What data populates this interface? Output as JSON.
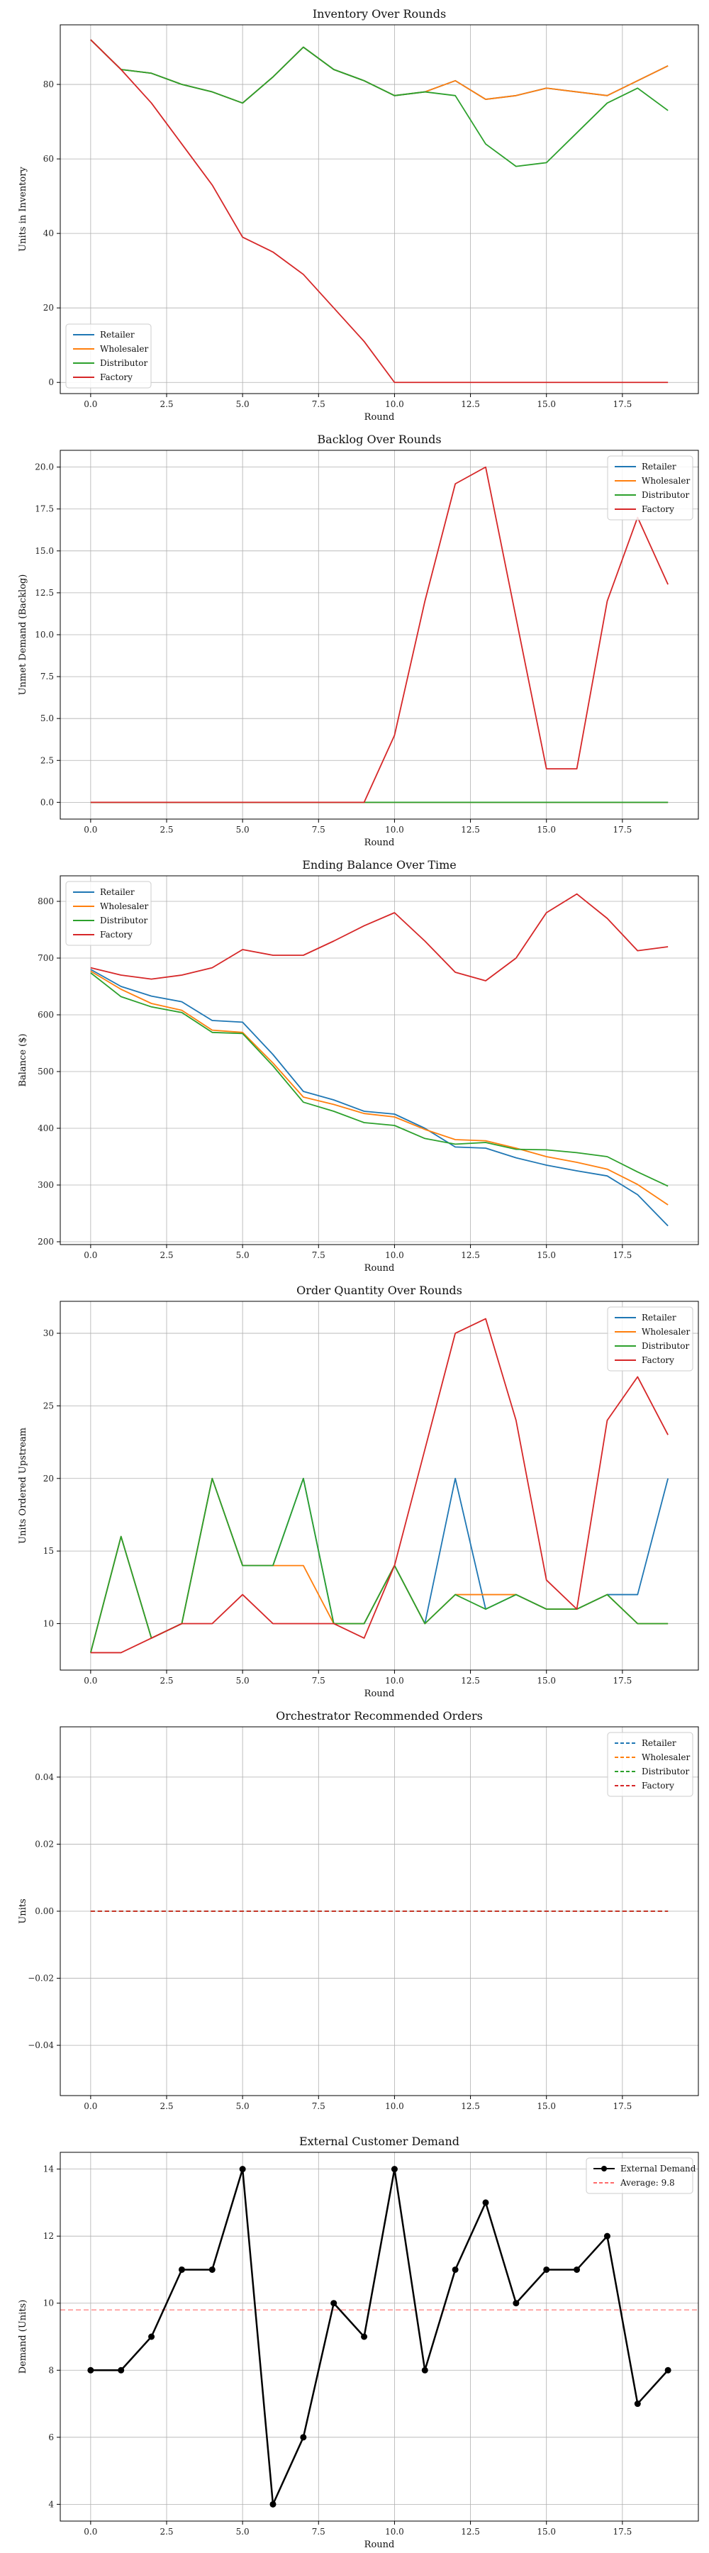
{
  "chart_data": [
    {
      "type": "line",
      "title": "Inventory Over Rounds",
      "xlabel": "Round",
      "ylabel": "Units in Inventory",
      "xlim": [
        -1,
        20
      ],
      "ylim": [
        -3,
        96
      ],
      "xticks": [
        0.0,
        2.5,
        5.0,
        7.5,
        10.0,
        12.5,
        15.0,
        17.5
      ],
      "xtick_labels": [
        "0.0",
        "2.5",
        "5.0",
        "7.5",
        "10.0",
        "12.5",
        "15.0",
        "17.5"
      ],
      "yticks": [
        0,
        20,
        40,
        60,
        80
      ],
      "ytick_labels": [
        "0",
        "20",
        "40",
        "60",
        "80"
      ],
      "legend_loc": "lower-left",
      "grid": true,
      "x": [
        0,
        1,
        2,
        3,
        4,
        5,
        6,
        7,
        8,
        9,
        10,
        11,
        12,
        13,
        14,
        15,
        16,
        17,
        18,
        19
      ],
      "series": [
        {
          "name": "Retailer",
          "color": "#1f77b4",
          "values": [
            92,
            84,
            83,
            80,
            78,
            75,
            82,
            90,
            84,
            81,
            77,
            78,
            81,
            76,
            77,
            79,
            78,
            77,
            81,
            85
          ]
        },
        {
          "name": "Wholesaler",
          "color": "#ff7f0e",
          "values": [
            92,
            84,
            83,
            80,
            78,
            75,
            82,
            90,
            84,
            81,
            77,
            78,
            81,
            76,
            77,
            79,
            78,
            77,
            81,
            85
          ]
        },
        {
          "name": "Distributor",
          "color": "#2ca02c",
          "values": [
            92,
            84,
            83,
            80,
            78,
            75,
            82,
            90,
            84,
            81,
            77,
            78,
            77,
            64,
            58,
            59,
            67,
            75,
            79,
            73
          ]
        },
        {
          "name": "Factory",
          "color": "#d62728",
          "values": [
            92,
            84,
            75,
            64,
            53,
            39,
            35,
            29,
            20,
            11,
            0,
            0,
            0,
            0,
            0,
            0,
            0,
            0,
            0,
            0
          ]
        }
      ]
    },
    {
      "type": "line",
      "title": "Backlog Over Rounds",
      "xlabel": "Round",
      "ylabel": "Unmet Demand (Backlog)",
      "xlim": [
        -1,
        20
      ],
      "ylim": [
        -1,
        21
      ],
      "xticks": [
        0.0,
        2.5,
        5.0,
        7.5,
        10.0,
        12.5,
        15.0,
        17.5
      ],
      "xtick_labels": [
        "0.0",
        "2.5",
        "5.0",
        "7.5",
        "10.0",
        "12.5",
        "15.0",
        "17.5"
      ],
      "yticks": [
        0,
        2.5,
        5,
        7.5,
        10,
        12.5,
        15,
        17.5,
        20
      ],
      "ytick_labels": [
        "0.0",
        "2.5",
        "5.0",
        "7.5",
        "10.0",
        "12.5",
        "15.0",
        "17.5",
        "20.0"
      ],
      "legend_loc": "upper-right",
      "grid": true,
      "x": [
        0,
        1,
        2,
        3,
        4,
        5,
        6,
        7,
        8,
        9,
        10,
        11,
        12,
        13,
        14,
        15,
        16,
        17,
        18,
        19
      ],
      "series": [
        {
          "name": "Retailer",
          "color": "#1f77b4",
          "values": [
            0,
            0,
            0,
            0,
            0,
            0,
            0,
            0,
            0,
            0,
            0,
            0,
            0,
            0,
            0,
            0,
            0,
            0,
            0,
            0
          ]
        },
        {
          "name": "Wholesaler",
          "color": "#ff7f0e",
          "values": [
            0,
            0,
            0,
            0,
            0,
            0,
            0,
            0,
            0,
            0,
            0,
            0,
            0,
            0,
            0,
            0,
            0,
            0,
            0,
            0
          ]
        },
        {
          "name": "Distributor",
          "color": "#2ca02c",
          "values": [
            0,
            0,
            0,
            0,
            0,
            0,
            0,
            0,
            0,
            0,
            0,
            0,
            0,
            0,
            0,
            0,
            0,
            0,
            0,
            0
          ]
        },
        {
          "name": "Factory",
          "color": "#d62728",
          "values": [
            0,
            0,
            0,
            0,
            0,
            0,
            0,
            0,
            0,
            0,
            4,
            12,
            19,
            20,
            11,
            2,
            2,
            12,
            17,
            13
          ]
        }
      ]
    },
    {
      "type": "line",
      "title": "Ending Balance Over Time",
      "xlabel": "Round",
      "ylabel": "Balance ($)",
      "xlim": [
        -1,
        20
      ],
      "ylim": [
        195,
        845
      ],
      "xticks": [
        0.0,
        2.5,
        5.0,
        7.5,
        10.0,
        12.5,
        15.0,
        17.5
      ],
      "xtick_labels": [
        "0.0",
        "2.5",
        "5.0",
        "7.5",
        "10.0",
        "12.5",
        "15.0",
        "17.5"
      ],
      "yticks": [
        200,
        300,
        400,
        500,
        600,
        700,
        800
      ],
      "ytick_labels": [
        "200",
        "300",
        "400",
        "500",
        "600",
        "700",
        "800"
      ],
      "legend_loc": "upper-left",
      "grid": true,
      "x": [
        0,
        1,
        2,
        3,
        4,
        5,
        6,
        7,
        8,
        9,
        10,
        11,
        12,
        13,
        14,
        15,
        16,
        17,
        18,
        19
      ],
      "series": [
        {
          "name": "Retailer",
          "color": "#1f77b4",
          "values": [
            680,
            650,
            633,
            623,
            590,
            587,
            530,
            465,
            450,
            430,
            425,
            400,
            367,
            365,
            348,
            335,
            325,
            316,
            283,
            228
          ]
        },
        {
          "name": "Wholesaler",
          "color": "#ff7f0e",
          "values": [
            677,
            645,
            620,
            608,
            573,
            569,
            515,
            455,
            442,
            426,
            420,
            398,
            380,
            378,
            365,
            350,
            340,
            328,
            301,
            265
          ]
        },
        {
          "name": "Distributor",
          "color": "#2ca02c",
          "values": [
            674,
            632,
            614,
            604,
            569,
            567,
            510,
            446,
            430,
            410,
            405,
            382,
            372,
            375,
            363,
            362,
            357,
            350,
            323,
            298
          ]
        },
        {
          "name": "Factory",
          "color": "#d62728",
          "values": [
            683,
            670,
            663,
            670,
            683,
            715,
            705,
            705,
            730,
            757,
            780,
            730,
            675,
            660,
            700,
            780,
            813,
            770,
            713,
            720
          ]
        }
      ]
    },
    {
      "type": "line",
      "title": "Order Quantity Over Rounds",
      "xlabel": "Round",
      "ylabel": "Units Ordered Upstream",
      "xlim": [
        -1,
        20
      ],
      "ylim": [
        6.8,
        32.2
      ],
      "xticks": [
        0.0,
        2.5,
        5.0,
        7.5,
        10.0,
        12.5,
        15.0,
        17.5
      ],
      "xtick_labels": [
        "0.0",
        "2.5",
        "5.0",
        "7.5",
        "10.0",
        "12.5",
        "15.0",
        "17.5"
      ],
      "yticks": [
        10,
        15,
        20,
        25,
        30
      ],
      "ytick_labels": [
        "10",
        "15",
        "20",
        "25",
        "30"
      ],
      "legend_loc": "upper-right",
      "grid": true,
      "x": [
        0,
        1,
        2,
        3,
        4,
        5,
        6,
        7,
        8,
        9,
        10,
        11,
        12,
        13,
        14,
        15,
        16,
        17,
        18,
        19
      ],
      "series": [
        {
          "name": "Retailer",
          "color": "#1f77b4",
          "values": [
            8,
            16,
            9,
            10,
            20,
            14,
            14,
            20,
            10,
            10,
            14,
            10,
            20,
            11,
            12,
            11,
            11,
            12,
            12,
            20
          ]
        },
        {
          "name": "Wholesaler",
          "color": "#ff7f0e",
          "values": [
            8,
            16,
            9,
            10,
            20,
            14,
            14,
            14,
            10,
            10,
            14,
            10,
            12,
            12,
            12,
            11,
            11,
            12,
            10,
            10
          ]
        },
        {
          "name": "Distributor",
          "color": "#2ca02c",
          "values": [
            8,
            16,
            9,
            10,
            20,
            14,
            14,
            20,
            10,
            10,
            14,
            10,
            12,
            11,
            12,
            11,
            11,
            12,
            10,
            10
          ]
        },
        {
          "name": "Factory",
          "color": "#d62728",
          "values": [
            8,
            8,
            9,
            10,
            10,
            12,
            10,
            10,
            10,
            9,
            14,
            22,
            30,
            31,
            24,
            13,
            11,
            24,
            27,
            23
          ]
        }
      ]
    },
    {
      "type": "line",
      "title": "Orchestrator Recommended Orders",
      "xlabel": "",
      "ylabel": "Units",
      "xlim": [
        -1,
        20
      ],
      "ylim": [
        -0.055,
        0.055
      ],
      "xticks": [
        0.0,
        2.5,
        5.0,
        7.5,
        10.0,
        12.5,
        15.0,
        17.5
      ],
      "xtick_labels": [
        "0.0",
        "2.5",
        "5.0",
        "7.5",
        "10.0",
        "12.5",
        "15.0",
        "17.5"
      ],
      "yticks": [
        -0.04,
        -0.02,
        0,
        0.02,
        0.04
      ],
      "ytick_labels": [
        "−0.04",
        "−0.02",
        "0.00",
        "0.02",
        "0.04"
      ],
      "legend_loc": "upper-right",
      "grid": true,
      "dashed": true,
      "x": [
        0,
        1,
        2,
        3,
        4,
        5,
        6,
        7,
        8,
        9,
        10,
        11,
        12,
        13,
        14,
        15,
        16,
        17,
        18,
        19
      ],
      "series": [
        {
          "name": "Retailer",
          "color": "#1f77b4",
          "values": [
            0,
            0,
            0,
            0,
            0,
            0,
            0,
            0,
            0,
            0,
            0,
            0,
            0,
            0,
            0,
            0,
            0,
            0,
            0,
            0
          ]
        },
        {
          "name": "Wholesaler",
          "color": "#ff7f0e",
          "values": [
            0,
            0,
            0,
            0,
            0,
            0,
            0,
            0,
            0,
            0,
            0,
            0,
            0,
            0,
            0,
            0,
            0,
            0,
            0,
            0
          ]
        },
        {
          "name": "Distributor",
          "color": "#2ca02c",
          "values": [
            0,
            0,
            0,
            0,
            0,
            0,
            0,
            0,
            0,
            0,
            0,
            0,
            0,
            0,
            0,
            0,
            0,
            0,
            0,
            0
          ]
        },
        {
          "name": "Factory",
          "color": "#d62728",
          "values": [
            0,
            0,
            0,
            0,
            0,
            0,
            0,
            0,
            0,
            0,
            0,
            0,
            0,
            0,
            0,
            0,
            0,
            0,
            0,
            0
          ]
        }
      ]
    },
    {
      "type": "line",
      "title": "External Customer Demand",
      "xlabel": "Round",
      "ylabel": "Demand (Units)",
      "xlim": [
        -1,
        20
      ],
      "ylim": [
        3.5,
        14.5
      ],
      "xticks": [
        0.0,
        2.5,
        5.0,
        7.5,
        10.0,
        12.5,
        15.0,
        17.5
      ],
      "xtick_labels": [
        "0.0",
        "2.5",
        "5.0",
        "7.5",
        "10.0",
        "12.5",
        "15.0",
        "17.5"
      ],
      "yticks": [
        4,
        6,
        8,
        10,
        12,
        14
      ],
      "ytick_labels": [
        "4",
        "6",
        "8",
        "10",
        "12",
        "14"
      ],
      "legend_loc": "upper-right",
      "grid": true,
      "markers": true,
      "x": [
        0,
        1,
        2,
        3,
        4,
        5,
        6,
        7,
        8,
        9,
        10,
        11,
        12,
        13,
        14,
        15,
        16,
        17,
        18,
        19
      ],
      "series": [
        {
          "name": "External Demand",
          "color": "#000000",
          "values": [
            8,
            8,
            9,
            11,
            11,
            14,
            4,
            6,
            10,
            9,
            14,
            8,
            11,
            13,
            10,
            11,
            11,
            12,
            7,
            8
          ]
        }
      ],
      "hline": {
        "name": "Average: 9.8",
        "value": 9.8,
        "color": "#ff6b6b"
      }
    }
  ]
}
